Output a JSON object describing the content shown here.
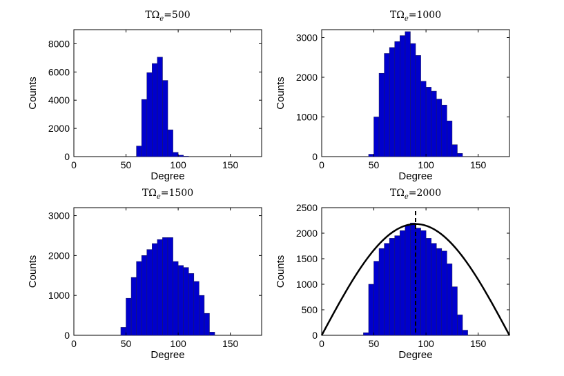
{
  "chart_data": [
    {
      "type": "bar",
      "title": {
        "prefix": "TΩ",
        "sub": "e",
        "suffix": "=500"
      },
      "xlabel": "Degree",
      "ylabel": "Counts",
      "xlim": [
        0,
        180
      ],
      "ylim": [
        0,
        9000
      ],
      "xticks": [
        0,
        50,
        100,
        150
      ],
      "yticks": [
        0,
        2000,
        4000,
        6000,
        8000
      ],
      "bin_width": 5,
      "x": [
        62.5,
        67.5,
        72.5,
        77.5,
        82.5,
        87.5,
        92.5,
        97.5,
        102.5,
        107.5
      ],
      "values": [
        750,
        4050,
        5950,
        6600,
        7050,
        5400,
        1900,
        300,
        100,
        30
      ]
    },
    {
      "type": "bar",
      "title": {
        "prefix": "TΩ",
        "sub": "e",
        "suffix": "=1000"
      },
      "xlabel": "Degree",
      "ylabel": "Counts",
      "xlim": [
        0,
        180
      ],
      "ylim": [
        0,
        3200
      ],
      "xticks": [
        0,
        50,
        100,
        150
      ],
      "yticks": [
        0,
        1000,
        2000,
        3000
      ],
      "bin_width": 5,
      "x": [
        47.5,
        52.5,
        57.5,
        62.5,
        67.5,
        72.5,
        77.5,
        82.5,
        87.5,
        92.5,
        97.5,
        102.5,
        107.5,
        112.5,
        117.5,
        122.5,
        127.5,
        132.5
      ],
      "values": [
        60,
        1000,
        2100,
        2600,
        2750,
        2900,
        3050,
        3150,
        2850,
        2550,
        1900,
        1750,
        1650,
        1450,
        1300,
        900,
        300,
        80
      ]
    },
    {
      "type": "bar",
      "title": {
        "prefix": "TΩ",
        "sub": "e",
        "suffix": "=1500"
      },
      "xlabel": "Degree",
      "ylabel": "Counts",
      "xlim": [
        0,
        180
      ],
      "ylim": [
        0,
        3200
      ],
      "xticks": [
        0,
        50,
        100,
        150
      ],
      "yticks": [
        0,
        1000,
        2000,
        3000
      ],
      "bin_width": 5,
      "x": [
        47.5,
        52.5,
        57.5,
        62.5,
        67.5,
        72.5,
        77.5,
        82.5,
        87.5,
        92.5,
        97.5,
        102.5,
        107.5,
        112.5,
        117.5,
        122.5,
        127.5,
        132.5
      ],
      "values": [
        200,
        930,
        1450,
        1850,
        2000,
        2150,
        2300,
        2400,
        2450,
        2450,
        1850,
        1750,
        1700,
        1550,
        1350,
        1000,
        550,
        80
      ]
    },
    {
      "type": "bar",
      "title": {
        "prefix": "TΩ",
        "sub": "e",
        "suffix": "=2000"
      },
      "xlabel": "Degree",
      "ylabel": "Counts",
      "xlim": [
        0,
        180
      ],
      "ylim": [
        0,
        2500
      ],
      "xticks": [
        0,
        50,
        100,
        150
      ],
      "yticks": [
        0,
        500,
        1000,
        1500,
        2000,
        2500
      ],
      "bin_width": 5,
      "x": [
        42.5,
        47.5,
        52.5,
        57.5,
        62.5,
        67.5,
        72.5,
        77.5,
        82.5,
        87.5,
        92.5,
        97.5,
        102.5,
        107.5,
        112.5,
        117.5,
        122.5,
        127.5,
        132.5,
        137.5
      ],
      "values": [
        50,
        1000,
        1450,
        1700,
        1800,
        1900,
        1950,
        2050,
        2150,
        2200,
        2100,
        2050,
        1900,
        1800,
        1700,
        1650,
        1400,
        950,
        400,
        100
      ],
      "overlay_curve": {
        "type": "line",
        "function": "amplitude*sin(x)",
        "amplitude": 2180,
        "x_range": [
          0,
          180
        ]
      },
      "vertical_line": {
        "x": 90,
        "style": "dashed"
      }
    }
  ]
}
